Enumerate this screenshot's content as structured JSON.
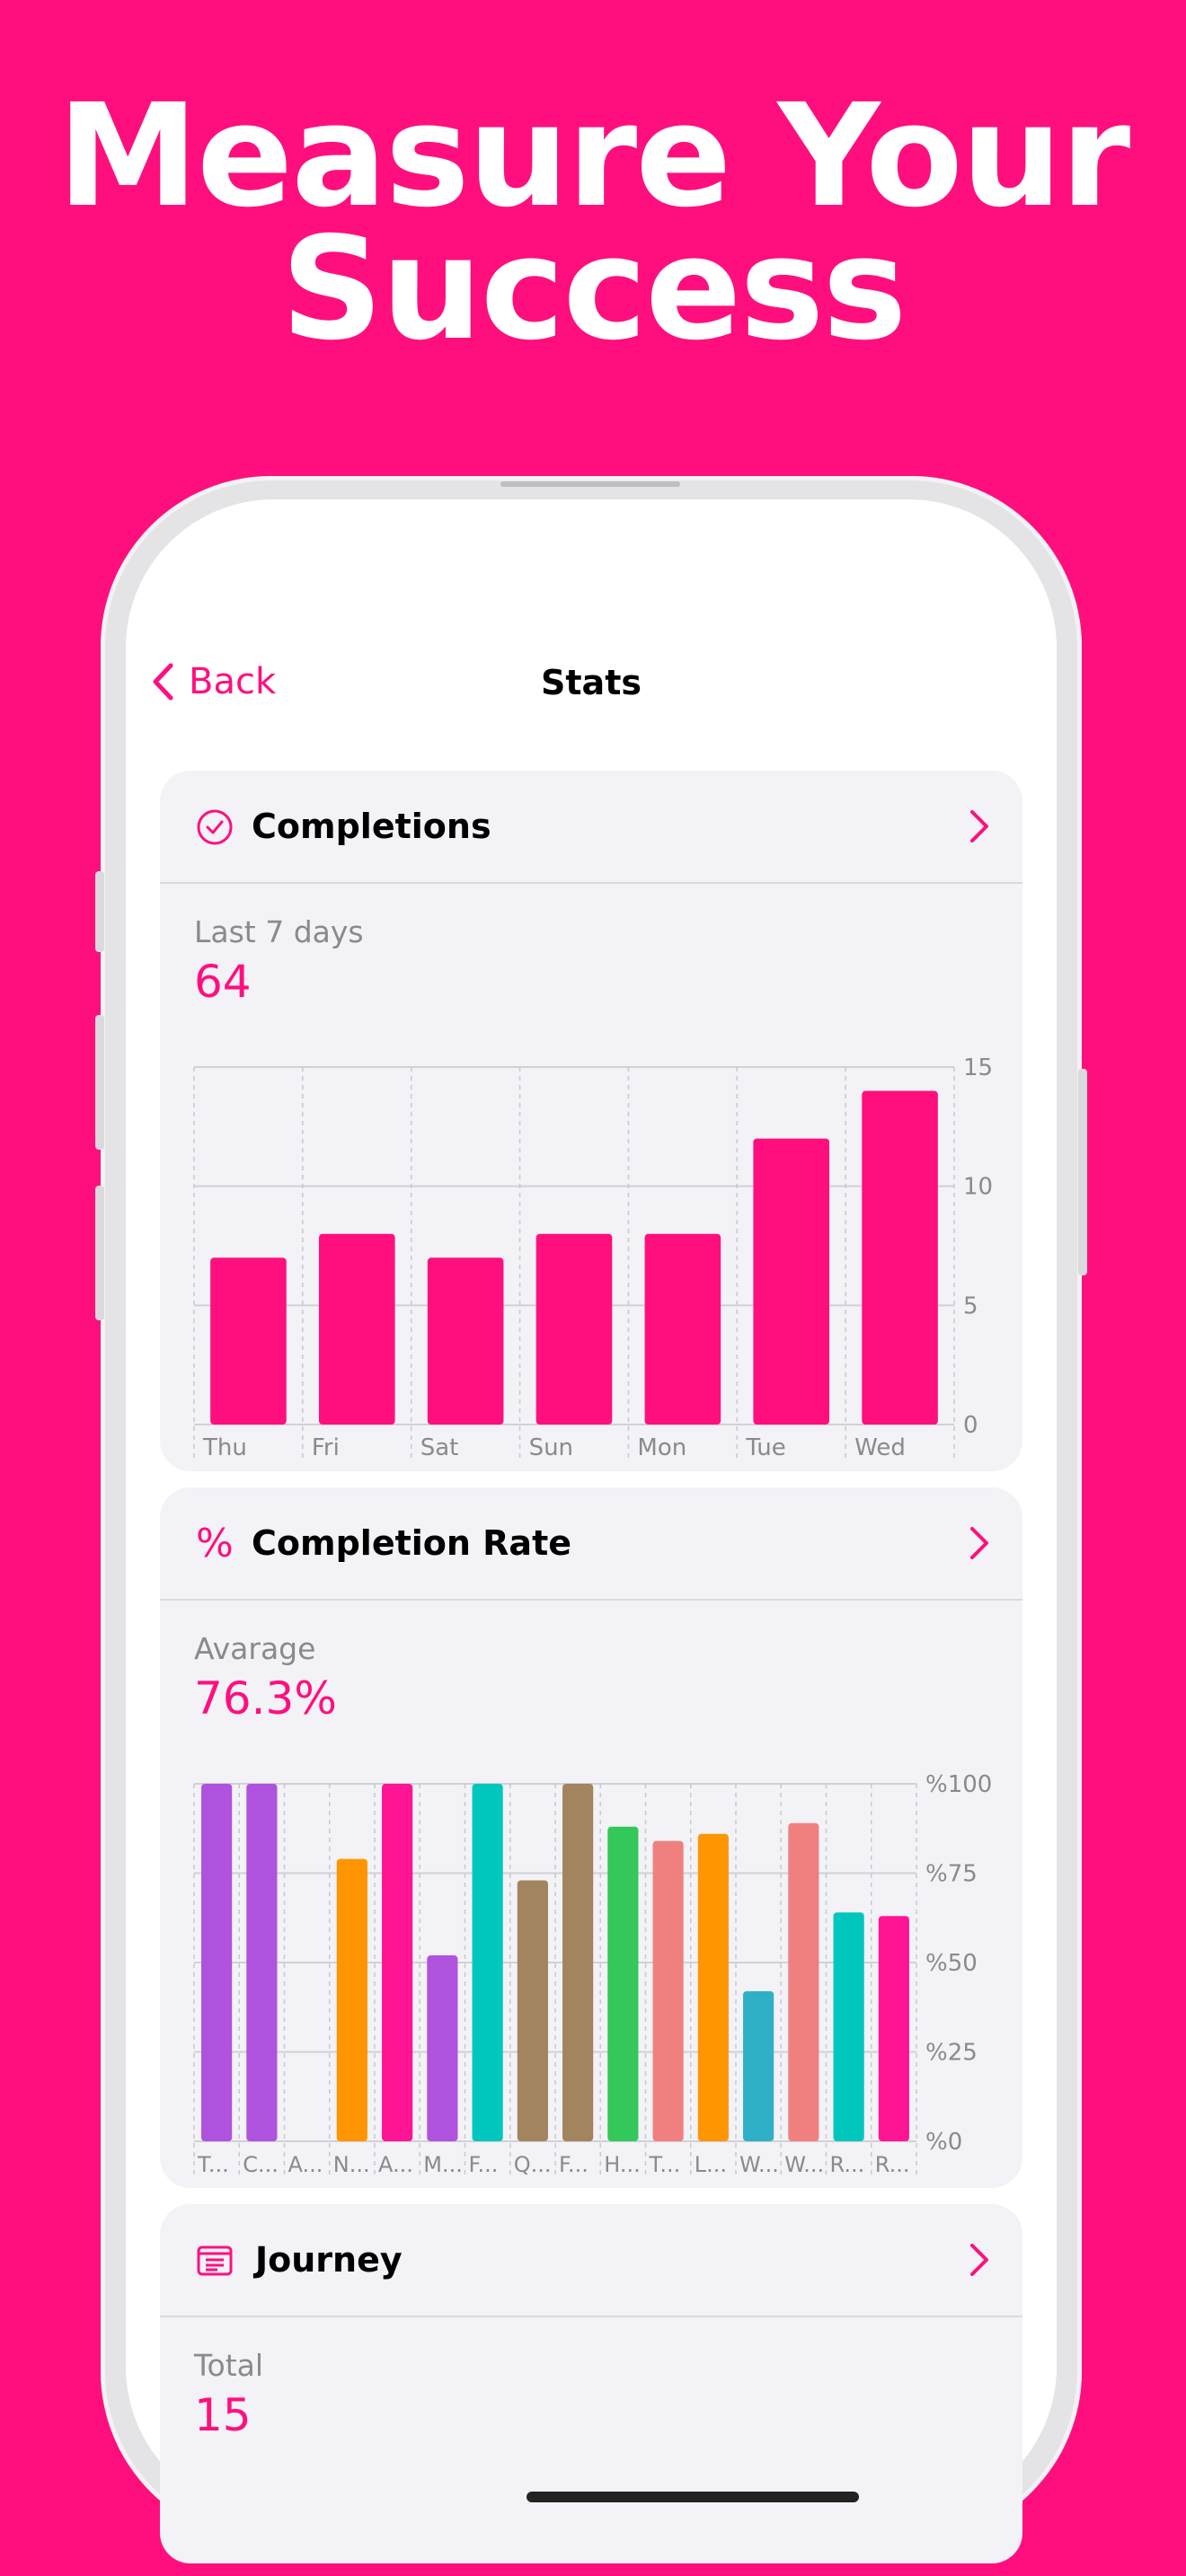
{
  "headline": {
    "line1": "Measure Your",
    "line2": "Success"
  },
  "nav": {
    "back_label": "Back",
    "title": "Stats"
  },
  "colors": {
    "accent": "#FF0F7E",
    "card_bg": "#F2F2F7"
  },
  "completions": {
    "title": "Completions",
    "icon": "checkmark-circle-icon",
    "sub_label": "Last 7 days",
    "value": "64"
  },
  "completion_rate": {
    "title": "Completion Rate",
    "icon": "percent-icon",
    "sub_label": "Avarage",
    "value": "76.3%"
  },
  "journey": {
    "title": "Journey",
    "icon": "journal-icon",
    "sub_label": "Total",
    "value": "15"
  },
  "chart_data": [
    {
      "type": "bar",
      "categories": [
        "Thu",
        "Fri",
        "Sat",
        "Sun",
        "Mon",
        "Tue",
        "Wed"
      ],
      "values": [
        7,
        8,
        7,
        8,
        8,
        12,
        14
      ],
      "ylim": [
        0,
        15
      ],
      "yticks": [
        "0",
        "5",
        "10",
        "15"
      ],
      "color": "#FF0F7E",
      "grid": true
    },
    {
      "type": "bar",
      "categories": [
        "T...",
        "C...",
        "A...",
        "N...",
        "A...",
        "M...",
        "F...",
        "Q...",
        "F...",
        "H...",
        "T...",
        "L...",
        "W...",
        "W...",
        "R...",
        "R..."
      ],
      "values": [
        100,
        100,
        0,
        79,
        100,
        52,
        100,
        73,
        100,
        88,
        84,
        86,
        42,
        89,
        64,
        63
      ],
      "colors": [
        "#AF52DE",
        "#AF52DE",
        "#AF52DE",
        "#FF9500",
        "#FF1493",
        "#AF52DE",
        "#00C7BE",
        "#A2845E",
        "#A2845E",
        "#34C759",
        "#F08080",
        "#FF9500",
        "#30B0C7",
        "#F08080",
        "#00C7BE",
        "#FF1493"
      ],
      "ylim": [
        0,
        100
      ],
      "yticks": [
        "%0",
        "%25",
        "%50",
        "%75",
        "%100"
      ],
      "grid": true
    }
  ]
}
